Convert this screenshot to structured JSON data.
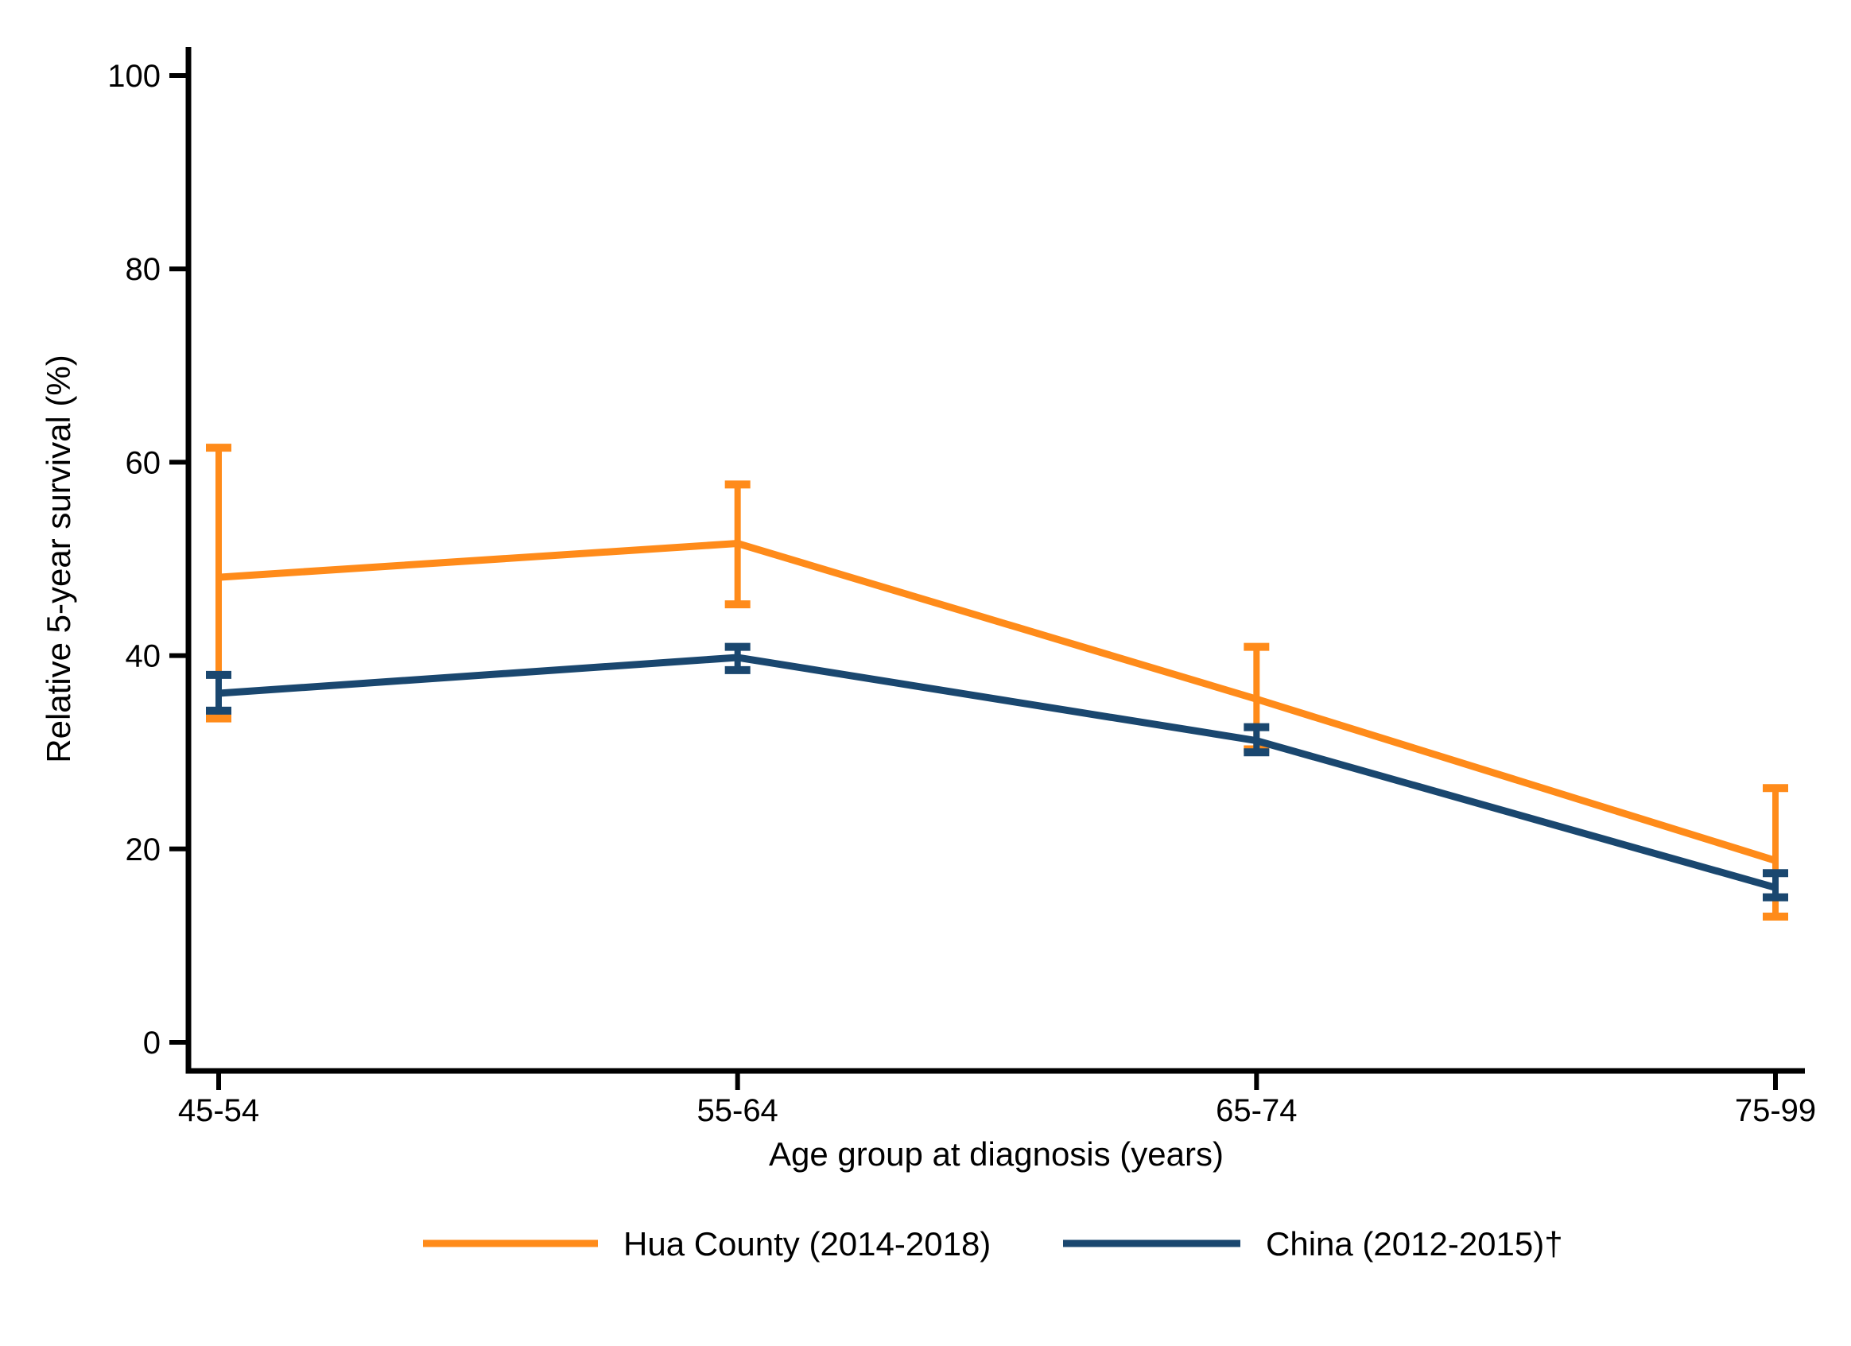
{
  "figure": {
    "background": "#FFFFFF",
    "axis_color": "#000000"
  },
  "chart_data": {
    "type": "line",
    "title": "",
    "xlabel": "Age group at diagnosis (years)",
    "ylabel": "Relative 5-year survival (%)",
    "categories": [
      "45-54",
      "55-64",
      "65-74",
      "75-99"
    ],
    "ylim": [
      0,
      100
    ],
    "yticks": [
      0,
      20,
      40,
      60,
      80,
      100
    ],
    "grid": false,
    "legend_position": "bottom-center",
    "error_bars": true,
    "series": [
      {
        "name": "Hua County (2014-2018)",
        "color": "#FF8B1A",
        "values": [
          48.1,
          51.6,
          35.5,
          18.8
        ],
        "ci_low": [
          33.5,
          45.3,
          30.3,
          13.0
        ],
        "ci_high": [
          61.5,
          57.7,
          40.9,
          26.3
        ]
      },
      {
        "name": "China (2012-2015)†",
        "color": "#1A476F",
        "values": [
          36.1,
          39.8,
          31.2,
          16.0
        ],
        "ci_low": [
          34.3,
          38.5,
          30.0,
          15.0
        ],
        "ci_high": [
          38.0,
          40.9,
          32.6,
          17.5
        ]
      }
    ]
  }
}
